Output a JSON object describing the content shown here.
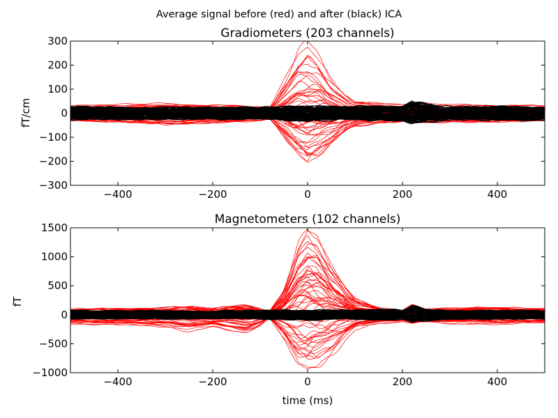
{
  "figure": {
    "suptitle": "Average signal before (red) and after (black) ICA"
  },
  "colors": {
    "before": "#ff0000",
    "after": "#000000",
    "axes": "#000000",
    "background": "#ffffff"
  },
  "chart_data": [
    {
      "type": "line",
      "title": "Gradiometers (203 channels)",
      "xlabel": "",
      "ylabel": "fT/cm",
      "xlim": [
        -500,
        500
      ],
      "ylim": [
        -300,
        300
      ],
      "xticks": [
        -400,
        -200,
        0,
        200,
        400
      ],
      "yticks": [
        -300,
        -200,
        -100,
        0,
        100,
        200,
        300
      ],
      "grid": false,
      "series": [
        {
          "color": "#ff0000",
          "count": 203,
          "envelope_x": [
            -500,
            -400,
            -300,
            -200,
            -100,
            -80,
            -50,
            -20,
            0,
            20,
            50,
            80,
            100,
            150,
            200,
            250,
            300,
            400,
            500
          ],
          "envelope_max": [
            30,
            35,
            40,
            35,
            25,
            20,
            130,
            260,
            290,
            250,
            150,
            80,
            50,
            40,
            35,
            40,
            35,
            35,
            30
          ],
          "envelope_min": [
            -30,
            -35,
            -45,
            -40,
            -30,
            -20,
            -90,
            -170,
            -205,
            -180,
            -120,
            -70,
            -50,
            -40,
            -35,
            -40,
            -35,
            -35,
            -30
          ]
        },
        {
          "color": "#000000",
          "count": 203,
          "envelope_x": [
            -500,
            -400,
            -300,
            -200,
            -100,
            0,
            100,
            200,
            220,
            250,
            300,
            400,
            500
          ],
          "envelope_max": [
            22,
            20,
            20,
            20,
            20,
            25,
            22,
            25,
            45,
            30,
            22,
            22,
            22
          ],
          "envelope_min": [
            -22,
            -20,
            -20,
            -20,
            -20,
            -25,
            -22,
            -25,
            -30,
            -28,
            -22,
            -22,
            -22
          ]
        }
      ]
    },
    {
      "type": "line",
      "title": "Magnetometers (102 channels)",
      "xlabel": "time (ms)",
      "ylabel": "fT",
      "xlim": [
        -500,
        500
      ],
      "ylim": [
        -1000,
        1500
      ],
      "xticks": [
        -400,
        -200,
        0,
        200,
        400
      ],
      "yticks": [
        -1000,
        -500,
        0,
        500,
        1000,
        1500
      ],
      "grid": false,
      "series": [
        {
          "color": "#ff0000",
          "count": 102,
          "envelope_x": [
            -500,
            -400,
            -300,
            -250,
            -200,
            -130,
            -100,
            -80,
            -50,
            -20,
            0,
            20,
            50,
            80,
            100,
            150,
            200,
            220,
            250,
            300,
            400,
            500
          ],
          "envelope_max": [
            100,
            110,
            120,
            150,
            110,
            180,
            100,
            60,
            450,
            1200,
            1490,
            1380,
            900,
            500,
            300,
            120,
            80,
            180,
            100,
            120,
            130,
            110
          ],
          "envelope_min": [
            -150,
            -180,
            -200,
            -280,
            -200,
            -320,
            -200,
            -60,
            -450,
            -850,
            -950,
            -860,
            -650,
            -400,
            -250,
            -150,
            -120,
            -160,
            -130,
            -150,
            -160,
            -140
          ]
        },
        {
          "color": "#000000",
          "count": 102,
          "envelope_x": [
            -500,
            -400,
            -300,
            -200,
            -100,
            0,
            100,
            150,
            200,
            220,
            250,
            300,
            400,
            500
          ],
          "envelope_max": [
            60,
            60,
            55,
            55,
            60,
            70,
            60,
            80,
            60,
            140,
            80,
            60,
            60,
            60
          ],
          "envelope_min": [
            -60,
            -60,
            -55,
            -55,
            -60,
            -70,
            -60,
            -80,
            -60,
            -100,
            -80,
            -60,
            -60,
            -60
          ]
        }
      ]
    }
  ]
}
